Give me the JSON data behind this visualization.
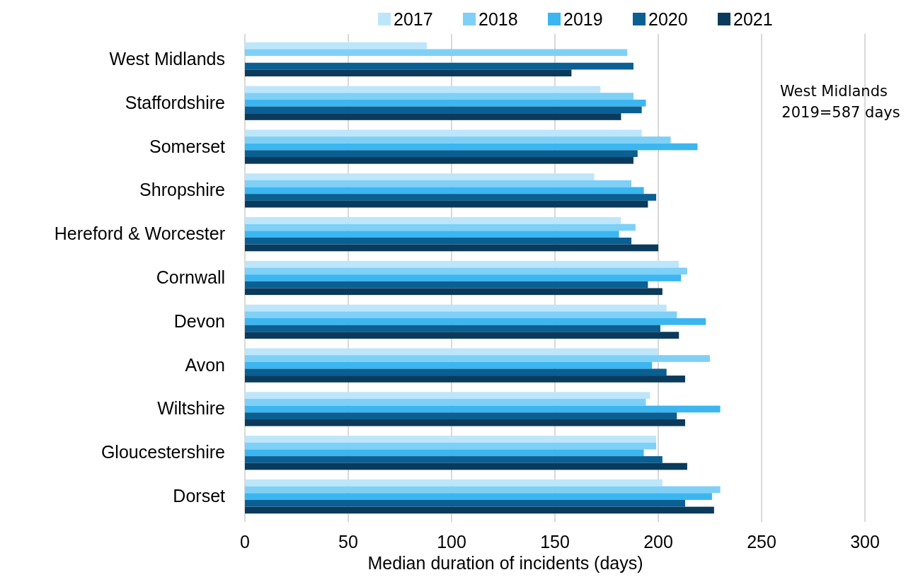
{
  "chart_data": {
    "type": "bar",
    "orientation": "horizontal",
    "xlabel": "Median duration of incidents (days)",
    "categories": [
      "West Midlands",
      "Staffordshire",
      "Somerset",
      "Shropshire",
      "Hereford & Worcester",
      "Cornwall",
      "Devon",
      "Avon",
      "Wiltshire",
      "Gloucestershire",
      "Dorset"
    ],
    "series": [
      {
        "name": "2017",
        "color": "#bde6fb",
        "values": [
          88,
          172,
          192,
          169,
          182,
          210,
          204,
          200,
          196,
          199,
          202
        ]
      },
      {
        "name": "2018",
        "color": "#7fd0f6",
        "values": [
          185,
          188,
          206,
          187,
          189,
          214,
          209,
          225,
          194,
          199,
          230
        ]
      },
      {
        "name": "2019",
        "color": "#3bb6f0",
        "values": [
          null,
          194,
          219,
          193,
          181,
          211,
          223,
          197,
          230,
          193,
          226
        ]
      },
      {
        "name": "2020",
        "color": "#0a5f93",
        "values": [
          188,
          192,
          190,
          199,
          187,
          195,
          201,
          204,
          209,
          202,
          213
        ]
      },
      {
        "name": "2021",
        "color": "#0a3a5c",
        "values": [
          158,
          182,
          188,
          195,
          200,
          202,
          210,
          213,
          213,
          214,
          227
        ]
      }
    ],
    "xlim": [
      0,
      300
    ],
    "xticks": [
      0,
      50,
      100,
      150,
      200,
      250,
      300
    ],
    "grid": "x",
    "legend": "top",
    "annotations": [
      "West Midlands\n2019=587 days"
    ]
  }
}
